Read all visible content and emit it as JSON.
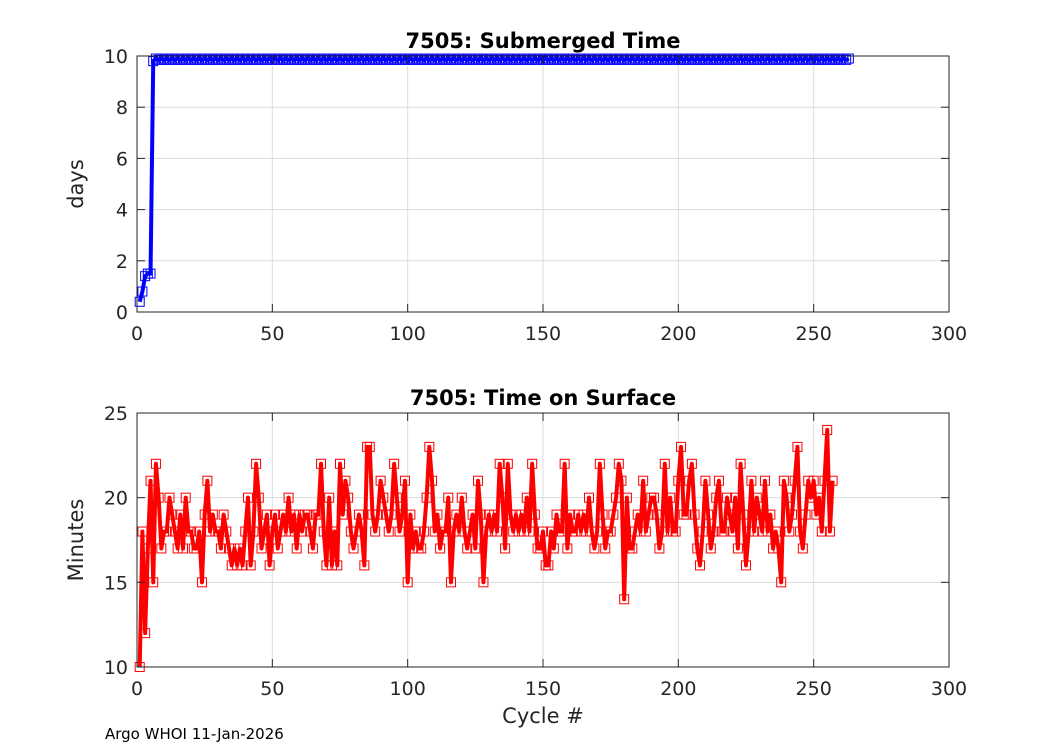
{
  "chart_data": [
    {
      "type": "line",
      "title": "7505: Submerged Time",
      "xlabel": "",
      "ylabel": "days",
      "xlim": [
        0,
        300
      ],
      "ylim": [
        0,
        10
      ],
      "xticks": [
        "0",
        "50",
        "100",
        "150",
        "200",
        "250",
        "300"
      ],
      "yticks": [
        "0",
        "2",
        "4",
        "6",
        "8",
        "10"
      ],
      "grid": true,
      "marker": "square",
      "color": "#0000ff",
      "series": [
        {
          "x_start": 1,
          "values": [
            0.4,
            0.8,
            1.4,
            1.5,
            1.5,
            9.8,
            9.9,
            9.85,
            9.9,
            9.85,
            9.9,
            9.85,
            9.9,
            9.85,
            9.9,
            9.85,
            9.9,
            9.85,
            9.9,
            9.85,
            9.9,
            9.85,
            9.9,
            9.85,
            9.9,
            9.85,
            9.9,
            9.85,
            9.9,
            9.85,
            9.9,
            9.85,
            9.9,
            9.85,
            9.9,
            9.85,
            9.9,
            9.85,
            9.9,
            9.85,
            9.9,
            9.85,
            9.9,
            9.85,
            9.9,
            9.85,
            9.9,
            9.85,
            9.9,
            9.85,
            9.9,
            9.85,
            9.9,
            9.85,
            9.9,
            9.85,
            9.9,
            9.85,
            9.9,
            9.85,
            9.9,
            9.85,
            9.9,
            9.85,
            9.9,
            9.85,
            9.9,
            9.85,
            9.9,
            9.85,
            9.9,
            9.85,
            9.9,
            9.85,
            9.9,
            9.85,
            9.9,
            9.85,
            9.9,
            9.85,
            9.9,
            9.85,
            9.9,
            9.85,
            9.9,
            9.85,
            9.9,
            9.85,
            9.9,
            9.85,
            9.9,
            9.85,
            9.9,
            9.85,
            9.9,
            9.85,
            9.9,
            9.85,
            9.9,
            9.85,
            9.9,
            9.85,
            9.9,
            9.85,
            9.9,
            9.85,
            9.9,
            9.85,
            9.9,
            9.85,
            9.9,
            9.85,
            9.9,
            9.85,
            9.9,
            9.85,
            9.9,
            9.85,
            9.9,
            9.85,
            9.9,
            9.85,
            9.9,
            9.85,
            9.9,
            9.85,
            9.9,
            9.85,
            9.9,
            9.85,
            9.9,
            9.85,
            9.9,
            9.85,
            9.9,
            9.85,
            9.9,
            9.85,
            9.9,
            9.85,
            9.9,
            9.85,
            9.9,
            9.85,
            9.9,
            9.85,
            9.9,
            9.85,
            9.9,
            9.85,
            9.9,
            9.85,
            9.9,
            9.85,
            9.9,
            9.85,
            9.9,
            9.85,
            9.9,
            9.85,
            9.9,
            9.85,
            9.9,
            9.85,
            9.9,
            9.85,
            9.9,
            9.85,
            9.9,
            9.85,
            9.9,
            9.85,
            9.9,
            9.85,
            9.9,
            9.85,
            9.9,
            9.85,
            9.9,
            9.85,
            9.9,
            9.85,
            9.9,
            9.85,
            9.9,
            9.85,
            9.9,
            9.85,
            9.9,
            9.85,
            9.9,
            9.85,
            9.9,
            9.85,
            9.9,
            9.85,
            9.9,
            9.85,
            9.9,
            9.85,
            9.9,
            9.85,
            9.9,
            9.85,
            9.9,
            9.85,
            9.9,
            9.85,
            9.9,
            9.85,
            9.9,
            9.85,
            9.9,
            9.85,
            9.9,
            9.85,
            9.9,
            9.85,
            9.9,
            9.85,
            9.9,
            9.85,
            9.9,
            9.85,
            9.9,
            9.85,
            9.9,
            9.85,
            9.9,
            9.85,
            9.9,
            9.85,
            9.9,
            9.85,
            9.9,
            9.85,
            9.9,
            9.85,
            9.9,
            9.85,
            9.9,
            9.85,
            9.9,
            9.85,
            9.9,
            9.85,
            9.9,
            9.85,
            9.9,
            9.85,
            9.9,
            9.85,
            9.9,
            9.85,
            9.9,
            9.85,
            9.9,
            9.85,
            9.9,
            9.85,
            9.9,
            9.85,
            9.9
          ]
        }
      ]
    },
    {
      "type": "line",
      "title": "7505: Time on Surface",
      "xlabel": "Cycle #",
      "ylabel": "Minutes",
      "xlim": [
        0,
        300
      ],
      "ylim": [
        10,
        25
      ],
      "xticks": [
        "0",
        "50",
        "100",
        "150",
        "200",
        "250",
        "300"
      ],
      "yticks": [
        "10",
        "15",
        "20",
        "25"
      ],
      "grid": true,
      "marker": "square",
      "color": "#ff0000",
      "series": [
        {
          "x_start": 1,
          "values": [
            10,
            18,
            12,
            17,
            21,
            15,
            22,
            20,
            17,
            18,
            18,
            20,
            19,
            18,
            17,
            19,
            17,
            20,
            18,
            18,
            17,
            17,
            18,
            15,
            19,
            21,
            18,
            19,
            18,
            18,
            17,
            19,
            18,
            17,
            16,
            17,
            16,
            17,
            16,
            18,
            20,
            16,
            18,
            22,
            20,
            17,
            18,
            19,
            16,
            18,
            19,
            17,
            18,
            19,
            18,
            20,
            18,
            19,
            17,
            19,
            18,
            19,
            19,
            18,
            17,
            19,
            19,
            22,
            18,
            16,
            20,
            16,
            18,
            16,
            22,
            19,
            21,
            20,
            18,
            17,
            18,
            19,
            18,
            16,
            23,
            23,
            19,
            18,
            19,
            21,
            20,
            19,
            18,
            19,
            22,
            20,
            18,
            19,
            21,
            15,
            19,
            17,
            18,
            17,
            17,
            18,
            20,
            23,
            21,
            18,
            19,
            17,
            18,
            18,
            20,
            15,
            18,
            19,
            18,
            20,
            18,
            17,
            18,
            19,
            17,
            21,
            19,
            15,
            18,
            19,
            18,
            19,
            18,
            22,
            20,
            17,
            22,
            19,
            18,
            19,
            18,
            19,
            18,
            20,
            18,
            22,
            19,
            17,
            17,
            18,
            16,
            16,
            18,
            17,
            19,
            18,
            18,
            22,
            17,
            19,
            18,
            18,
            19,
            18,
            19,
            18,
            20,
            18,
            17,
            18,
            22,
            19,
            17,
            18,
            18,
            19,
            20,
            22,
            21,
            14,
            20,
            17,
            17,
            18,
            19,
            18,
            21,
            18,
            19,
            20,
            20,
            19,
            17,
            18,
            22,
            18,
            20,
            18,
            18,
            21,
            23,
            19,
            19,
            21,
            22,
            19,
            17,
            16,
            18,
            21,
            19,
            17,
            18,
            20,
            21,
            18,
            18,
            20,
            19,
            18,
            20,
            17,
            22,
            19,
            16,
            18,
            21,
            18,
            20,
            19,
            18,
            21,
            18,
            19,
            17,
            18,
            17,
            15,
            21,
            20,
            18,
            19,
            21,
            23,
            18,
            17,
            19,
            21,
            20,
            21,
            19,
            20,
            18,
            21,
            24,
            18,
            21
          ],
          "x_start_note": ""
        }
      ]
    }
  ],
  "footer": {
    "text": "Argo WHOI 11-Jan-2026"
  }
}
